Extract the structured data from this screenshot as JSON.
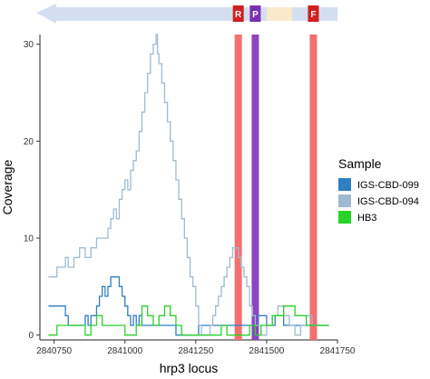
{
  "chart_data": {
    "type": "line",
    "xlabel": "hrp3 locus",
    "ylabel": "Coverage",
    "xlim": [
      2840700,
      2841750
    ],
    "ylim": [
      -0.5,
      31
    ],
    "x_ticks": [
      2840750,
      2841000,
      2841250,
      2841500,
      2841750
    ],
    "x_tick_labels": [
      "2840750",
      "2841000",
      "2841250",
      "2841500",
      "2841750"
    ],
    "y_ticks": [
      0,
      10,
      20,
      30
    ],
    "y_tick_labels": [
      "0",
      "10",
      "20",
      "30"
    ],
    "grid": false,
    "legend": {
      "title": "Sample",
      "position": "right"
    },
    "series": [
      {
        "name": "IGS-CBD-099",
        "color": "#2f7fc1",
        "x": [
          2840730,
          2840780,
          2840790,
          2840800,
          2840850,
          2840860,
          2840870,
          2840880,
          2840900,
          2840910,
          2840920,
          2840930,
          2840940,
          2840950,
          2840960,
          2840970,
          2840980,
          2840990,
          2841000,
          2841010,
          2841020,
          2841030,
          2841040,
          2841050,
          2841060,
          2841080,
          2841140,
          2841180,
          2841240,
          2841260,
          2841300,
          2841330,
          2841360,
          2841400,
          2841450,
          2841470,
          2841500,
          2841530,
          2841560,
          2841600,
          2841640,
          2841700
        ],
        "y": [
          3,
          3,
          2,
          1,
          1,
          2,
          1,
          2,
          3,
          4,
          5,
          4,
          5,
          6,
          6,
          6,
          5,
          4,
          3,
          2,
          1,
          2,
          1,
          2,
          1,
          1,
          1,
          0,
          0,
          1,
          1,
          1,
          1,
          1,
          1,
          2,
          1,
          2,
          1,
          1,
          1,
          1
        ]
      },
      {
        "name": "IGS-CBD-094",
        "color": "#9fbad0",
        "x": [
          2840730,
          2840750,
          2840760,
          2840770,
          2840790,
          2840800,
          2840820,
          2840840,
          2840860,
          2840880,
          2840900,
          2840920,
          2840940,
          2840950,
          2840960,
          2840970,
          2840980,
          2840990,
          2841000,
          2841010,
          2841020,
          2841030,
          2841040,
          2841050,
          2841060,
          2841070,
          2841080,
          2841090,
          2841100,
          2841110,
          2841115,
          2841120,
          2841130,
          2841140,
          2841150,
          2841160,
          2841170,
          2841180,
          2841190,
          2841200,
          2841210,
          2841220,
          2841230,
          2841240,
          2841250,
          2841260,
          2841270,
          2841280,
          2841290,
          2841300,
          2841310,
          2841320,
          2841330,
          2841340,
          2841350,
          2841360,
          2841370,
          2841380,
          2841390,
          2841400,
          2841410,
          2841420,
          2841430,
          2841440,
          2841450,
          2841460,
          2841480,
          2841500,
          2841520,
          2841540,
          2841560,
          2841580,
          2841600,
          2841620,
          2841640,
          2841660,
          2841680,
          2841700
        ],
        "y": [
          6,
          6,
          7,
          7,
          8,
          7,
          8,
          9,
          8,
          9,
          10,
          10,
          11,
          12,
          13,
          12,
          14,
          15,
          16,
          15,
          17,
          18,
          19,
          21,
          23,
          25,
          27,
          29,
          30,
          31,
          29,
          28,
          26,
          24,
          22,
          20,
          18,
          16,
          14,
          12,
          10,
          8,
          6,
          5,
          3,
          1,
          0,
          0,
          0,
          1,
          2,
          3,
          4,
          5,
          6,
          7,
          8,
          9,
          9,
          8,
          7,
          6,
          5,
          3,
          2,
          1,
          0,
          1,
          2,
          3,
          2,
          1,
          0,
          1,
          2,
          1,
          1,
          1
        ]
      },
      {
        "name": "HB3",
        "color": "#27d327",
        "x": [
          2840730,
          2840760,
          2840820,
          2840860,
          2840880,
          2840900,
          2840920,
          2840980,
          2841000,
          2841020,
          2841040,
          2841060,
          2841080,
          2841100,
          2841120,
          2841140,
          2841160,
          2841180,
          2841200,
          2841240,
          2841300,
          2841340,
          2841360,
          2841400,
          2841440,
          2841460,
          2841480,
          2841520,
          2841560,
          2841600,
          2841640,
          2841680,
          2841700
        ],
        "y": [
          0,
          1,
          1,
          0,
          1,
          2,
          1,
          1,
          0,
          0,
          1,
          3,
          2,
          1,
          2,
          3,
          2,
          1,
          0,
          0,
          0,
          1,
          0,
          0,
          1,
          0,
          1,
          2,
          3,
          2,
          1,
          1,
          1
        ]
      }
    ],
    "vbands": [
      {
        "label": "R",
        "x": 2841400,
        "color": "#f46f6f"
      },
      {
        "label": "P",
        "x": 2841460,
        "color": "#8e44c4"
      },
      {
        "label": "F",
        "x": 2841665,
        "color": "#f46f6f"
      }
    ],
    "gene_track": {
      "arrow_color": "#d3dff0",
      "region_color": "#faeacb",
      "region_x": [
        2841500,
        2841590
      ]
    }
  }
}
